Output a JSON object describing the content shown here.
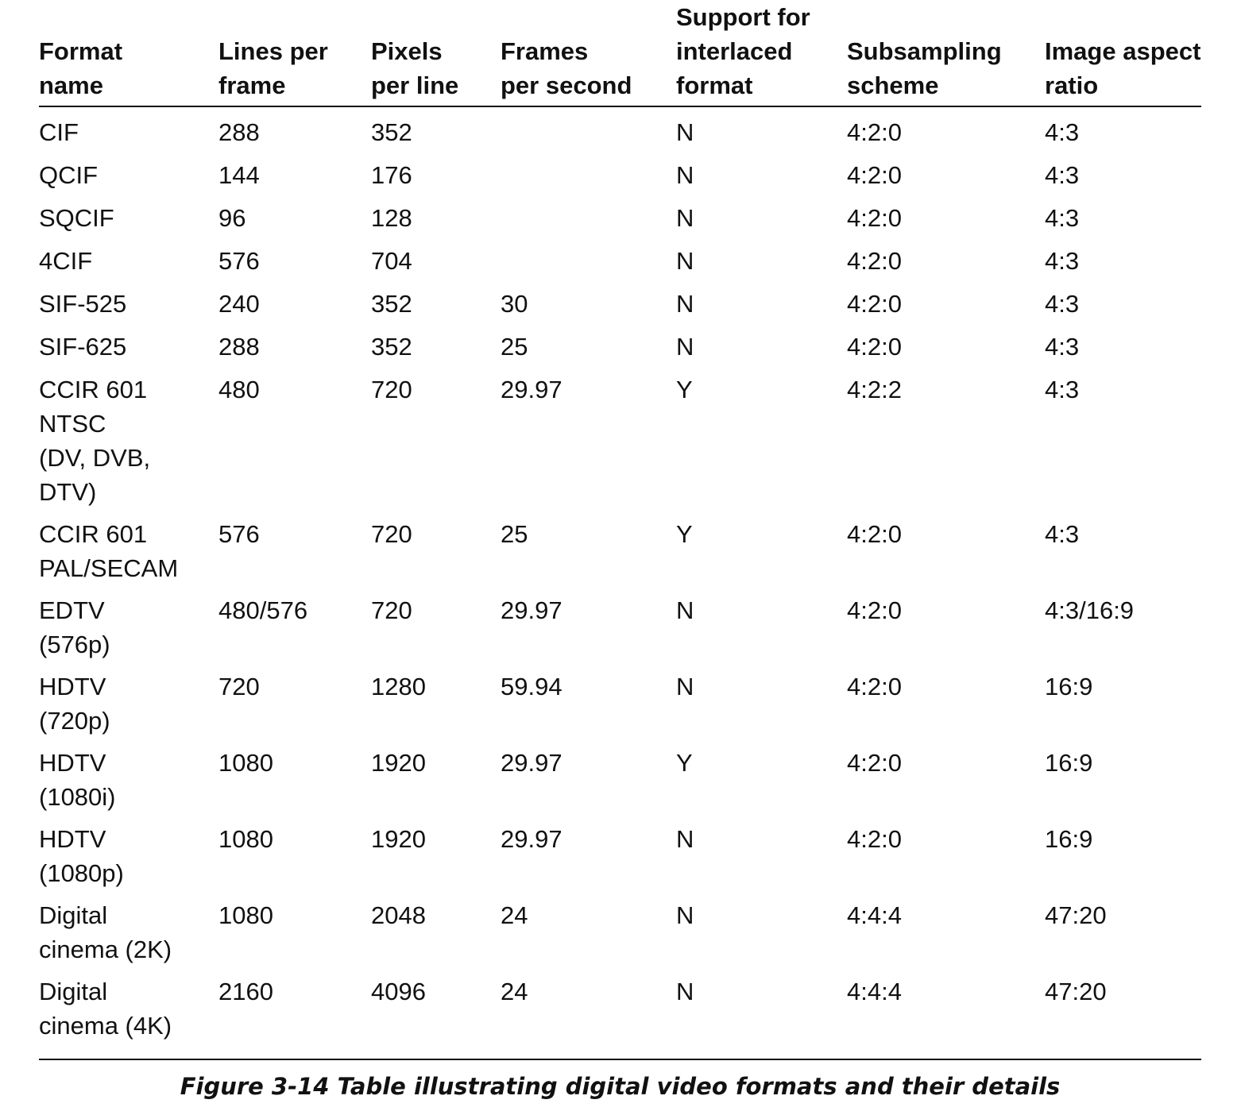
{
  "table": {
    "headers": [
      [
        "Format",
        "name"
      ],
      [
        "Lines per",
        "frame"
      ],
      [
        "Pixels",
        "per line"
      ],
      [
        "Frames",
        "per second"
      ],
      [
        "Support for",
        "interlaced",
        "format"
      ],
      [
        "Subsampling",
        "scheme"
      ],
      [
        "Image aspect",
        "ratio"
      ]
    ],
    "rows": [
      {
        "name": [
          "CIF"
        ],
        "lines": "288",
        "pixels": "352",
        "fps": "",
        "interlaced": "N",
        "subsampling": "4:2:0",
        "aspect": "4:3"
      },
      {
        "name": [
          "QCIF"
        ],
        "lines": "144",
        "pixels": "176",
        "fps": "",
        "interlaced": "N",
        "subsampling": "4:2:0",
        "aspect": "4:3"
      },
      {
        "name": [
          "SQCIF"
        ],
        "lines": "96",
        "pixels": "128",
        "fps": "",
        "interlaced": "N",
        "subsampling": "4:2:0",
        "aspect": "4:3"
      },
      {
        "name": [
          "4CIF"
        ],
        "lines": "576",
        "pixels": "704",
        "fps": "",
        "interlaced": "N",
        "subsampling": "4:2:0",
        "aspect": "4:3"
      },
      {
        "name": [
          "SIF-525"
        ],
        "lines": "240",
        "pixels": "352",
        "fps": "30",
        "interlaced": "N",
        "subsampling": "4:2:0",
        "aspect": "4:3"
      },
      {
        "name": [
          "SIF-625"
        ],
        "lines": "288",
        "pixels": "352",
        "fps": "25",
        "interlaced": "N",
        "subsampling": "4:2:0",
        "aspect": "4:3"
      },
      {
        "name": [
          "CCIR 601",
          "NTSC",
          "(DV, DVB,",
          "DTV)"
        ],
        "lines": "480",
        "pixels": "720",
        "fps": "29.97",
        "interlaced": "Y",
        "subsampling": "4:2:2",
        "aspect": "4:3"
      },
      {
        "name": [
          "CCIR 601",
          "PAL/SECAM"
        ],
        "lines": "576",
        "pixels": "720",
        "fps": "25",
        "interlaced": "Y",
        "subsampling": "4:2:0",
        "aspect": "4:3"
      },
      {
        "name": [
          "EDTV",
          "(576p)"
        ],
        "lines": "480/576",
        "pixels": "720",
        "fps": "29.97",
        "interlaced": "N",
        "subsampling": "4:2:0",
        "aspect": "4:3/16:9"
      },
      {
        "name": [
          "HDTV",
          "(720p)"
        ],
        "lines": "720",
        "pixels": "1280",
        "fps": "59.94",
        "interlaced": "N",
        "subsampling": "4:2:0",
        "aspect": "16:9"
      },
      {
        "name": [
          "HDTV",
          "(1080i)"
        ],
        "lines": "1080",
        "pixels": "1920",
        "fps": "29.97",
        "interlaced": "Y",
        "subsampling": "4:2:0",
        "aspect": "16:9"
      },
      {
        "name": [
          "HDTV",
          "(1080p)"
        ],
        "lines": "1080",
        "pixels": "1920",
        "fps": "29.97",
        "interlaced": "N",
        "subsampling": "4:2:0",
        "aspect": "16:9"
      },
      {
        "name": [
          "Digital",
          "cinema (2K)"
        ],
        "lines": "1080",
        "pixels": "2048",
        "fps": "24",
        "interlaced": "N",
        "subsampling": "4:4:4",
        "aspect": "47:20"
      },
      {
        "name": [
          "Digital",
          "cinema (4K)"
        ],
        "lines": "2160",
        "pixels": "4096",
        "fps": "24",
        "interlaced": "N",
        "subsampling": "4:4:4",
        "aspect": "47:20"
      }
    ]
  },
  "caption": "Figure 3-14 Table illustrating digital video formats and their details"
}
